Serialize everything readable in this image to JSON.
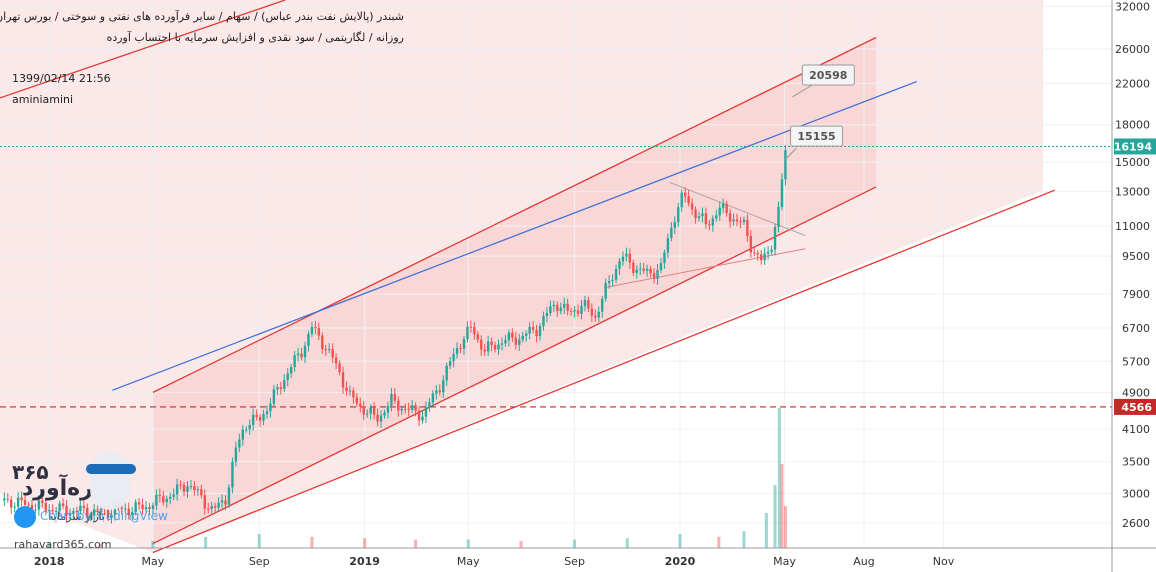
{
  "header": {
    "title": "شبندر (پالایش نفت بندر عباس) / سهام / سایر فرآورده های نفتی و سوختی / بورس تهران",
    "subtitle": "روزانه / لگاریتمی / سود نقدی و افزایش سرمایه با احتساب آورده",
    "timestamp": "1399/02/14 21:56",
    "author": "aminiamini"
  },
  "watermark": {
    "brand_text": "ره‌آورد",
    "brand_number": "۳۶۵",
    "sub_text": "بازار سرمایه",
    "url": "rahavard365.com",
    "tv_text": "Chart by TradingView"
  },
  "chart_data": {
    "type": "candlestick",
    "title": "",
    "scale": "log",
    "ylim": [
      2300,
      33000
    ],
    "y_ticks": [
      2600,
      3000,
      3500,
      4100,
      4900,
      5700,
      6700,
      7900,
      9500,
      11000,
      13000,
      15000,
      18000,
      22000,
      26000,
      32000
    ],
    "x_ticks": [
      {
        "label": "2018",
        "date": "2018-01-01",
        "bold": true
      },
      {
        "label": "May",
        "date": "2018-05-01",
        "bold": false
      },
      {
        "label": "Sep",
        "date": "2018-09-01",
        "bold": false
      },
      {
        "label": "2019",
        "date": "2019-01-01",
        "bold": true
      },
      {
        "label": "May",
        "date": "2019-05-01",
        "bold": false
      },
      {
        "label": "Sep",
        "date": "2019-09-01",
        "bold": false
      },
      {
        "label": "2020",
        "date": "2020-01-01",
        "bold": true
      },
      {
        "label": "May",
        "date": "2020-05-01",
        "bold": false
      },
      {
        "label": "Aug",
        "date": "2020-08-01",
        "bold": false
      },
      {
        "label": "Nov",
        "date": "2020-11-01",
        "bold": false
      }
    ],
    "xlim": [
      "2017-11-05",
      "2021-05-15"
    ],
    "price_path": [
      [
        "2017-11-10",
        2900
      ],
      [
        "2017-12-15",
        2820
      ],
      [
        "2018-01-20",
        2760
      ],
      [
        "2018-03-01",
        2740
      ],
      [
        "2018-04-20",
        2800
      ],
      [
        "2018-05-25",
        3000
      ],
      [
        "2018-06-10",
        3150
      ],
      [
        "2018-06-25",
        2950
      ],
      [
        "2018-07-10",
        2750
      ],
      [
        "2018-07-25",
        2950
      ],
      [
        "2018-08-05",
        3700
      ],
      [
        "2018-08-15",
        4200
      ],
      [
        "2018-09-01",
        4300
      ],
      [
        "2018-09-15",
        4700
      ],
      [
        "2018-10-01",
        5300
      ],
      [
        "2018-10-20",
        6000
      ],
      [
        "2018-11-01",
        6700
      ],
      [
        "2018-11-15",
        6200
      ],
      [
        "2018-12-01",
        5500
      ],
      [
        "2018-12-15",
        4800
      ],
      [
        "2019-01-01",
        4500
      ],
      [
        "2019-01-15",
        4300
      ],
      [
        "2019-02-01",
        4700
      ],
      [
        "2019-02-20",
        4500
      ],
      [
        "2019-03-10",
        4400
      ],
      [
        "2019-04-01",
        5200
      ],
      [
        "2019-04-20",
        6200
      ],
      [
        "2019-05-05",
        6700
      ],
      [
        "2019-05-20",
        6000
      ],
      [
        "2019-06-10",
        6300
      ],
      [
        "2019-07-01",
        6400
      ],
      [
        "2019-07-20",
        6700
      ],
      [
        "2019-08-10",
        7600
      ],
      [
        "2019-08-25",
        7200
      ],
      [
        "2019-09-10",
        7500
      ],
      [
        "2019-09-25",
        7100
      ],
      [
        "2019-10-10",
        8300
      ],
      [
        "2019-10-25",
        9500
      ],
      [
        "2019-11-10",
        9000
      ],
      [
        "2019-11-25",
        8700
      ],
      [
        "2019-12-10",
        9000
      ],
      [
        "2019-12-25",
        11500
      ],
      [
        "2020-01-05",
        12800
      ],
      [
        "2020-01-15",
        12000
      ],
      [
        "2020-02-01",
        11000
      ],
      [
        "2020-02-15",
        12000
      ],
      [
        "2020-03-01",
        11500
      ],
      [
        "2020-03-15",
        11000
      ],
      [
        "2020-03-25",
        9800
      ],
      [
        "2020-04-05",
        9200
      ],
      [
        "2020-04-15",
        10000
      ],
      [
        "2020-04-25",
        12000
      ],
      [
        "2020-04-30",
        15000
      ],
      [
        "2020-05-03",
        16194
      ]
    ],
    "last_price": 16194,
    "horizontal_line": 4566,
    "annotations": [
      {
        "label": "20598",
        "value": 20598
      },
      {
        "label": "15155",
        "value": 15155
      }
    ],
    "volume_scale_max": 100,
    "volume": [
      [
        "2018-01-01",
        4
      ],
      [
        "2018-03-01",
        3
      ],
      [
        "2018-05-01",
        5
      ],
      [
        "2018-07-01",
        8
      ],
      [
        "2018-09-01",
        10
      ],
      [
        "2018-11-01",
        8
      ],
      [
        "2019-01-01",
        7
      ],
      [
        "2019-03-01",
        6
      ],
      [
        "2019-05-01",
        6
      ],
      [
        "2019-07-01",
        5
      ],
      [
        "2019-09-01",
        6
      ],
      [
        "2019-11-01",
        7
      ],
      [
        "2020-01-01",
        10
      ],
      [
        "2020-02-15",
        8
      ],
      [
        "2020-03-15",
        12
      ],
      [
        "2020-04-10",
        25
      ],
      [
        "2020-04-20",
        45
      ],
      [
        "2020-04-25",
        100
      ],
      [
        "2020-04-28",
        60
      ],
      [
        "2020-05-02",
        30
      ]
    ],
    "colors": {
      "up": "#26a69a",
      "down": "#ef5350",
      "channel": "#e53935",
      "channel_fill": "#f8d5d5",
      "trend": "#3f6fd8",
      "last_price_bg": "#26a69a",
      "horizontal_line": "#c62828"
    }
  }
}
